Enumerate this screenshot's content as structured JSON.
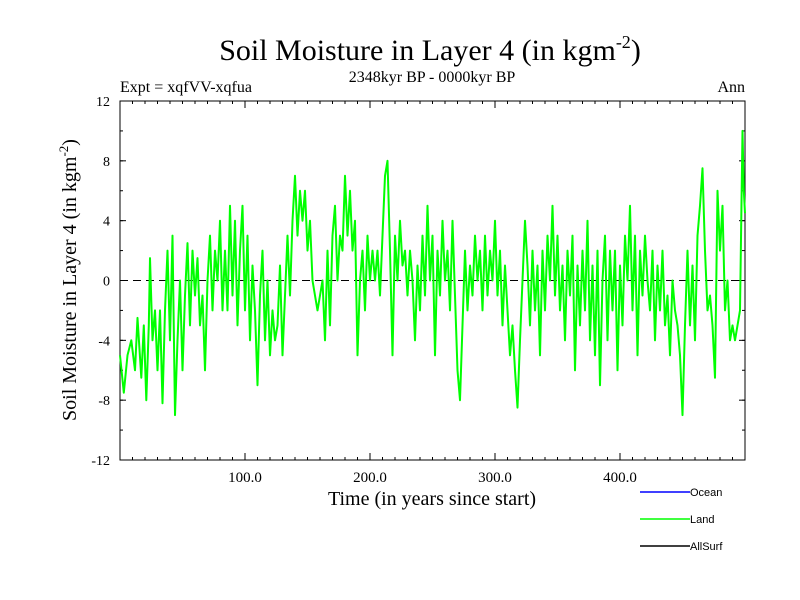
{
  "chart_data": {
    "type": "line",
    "title": "Soil Moisture in Layer 4 (in kgm",
    "title_sup": "-2",
    "title_end": ")",
    "subtitle_left": "Expt = xqfVV-xqfua",
    "subtitle_center": "2348kyr BP - 0000kyr BP",
    "subtitle_right": "Ann",
    "xlabel": "Time (in years since start)",
    "ylabel": "Soil Moisture in Layer 4 (in kgm",
    "ylabel_sup": "-2",
    "ylabel_end": ")",
    "xlim": [
      0,
      500
    ],
    "ylim": [
      -12,
      12
    ],
    "x_ticks": [
      100,
      200,
      300,
      400
    ],
    "x_tick_labels": [
      "100.0",
      "200.0",
      "300.0",
      "400.0"
    ],
    "y_ticks": [
      -12,
      -8,
      -4,
      0,
      4,
      8,
      12
    ],
    "y_tick_labels": [
      "-12",
      "-8",
      "-4",
      "0",
      "4",
      "8",
      "12"
    ],
    "zero_line": true,
    "series": [
      {
        "name": "Ocean",
        "color": "#0000ff",
        "points": []
      },
      {
        "name": "Land",
        "color": "#00ff00",
        "points": [
          [
            0,
            -5
          ],
          [
            3,
            -7.5
          ],
          [
            6,
            -5
          ],
          [
            9,
            -4
          ],
          [
            12,
            -6
          ],
          [
            14,
            -2.5
          ],
          [
            17,
            -6.5
          ],
          [
            19,
            -3
          ],
          [
            21,
            -8
          ],
          [
            23,
            -3
          ],
          [
            24,
            1.5
          ],
          [
            26,
            -4
          ],
          [
            28,
            -2
          ],
          [
            30,
            -6
          ],
          [
            32,
            -2
          ],
          [
            34,
            -8.2
          ],
          [
            36,
            -2
          ],
          [
            38,
            2
          ],
          [
            40,
            -4
          ],
          [
            42,
            3
          ],
          [
            44,
            -9
          ],
          [
            46,
            -4
          ],
          [
            48,
            0
          ],
          [
            50,
            -6
          ],
          [
            52,
            -1
          ],
          [
            54,
            2.5
          ],
          [
            56,
            -3
          ],
          [
            58,
            2
          ],
          [
            60,
            -1
          ],
          [
            62,
            1.5
          ],
          [
            64,
            -3
          ],
          [
            66,
            -1
          ],
          [
            68,
            -6
          ],
          [
            70,
            0
          ],
          [
            72,
            3
          ],
          [
            74,
            -2
          ],
          [
            76,
            2
          ],
          [
            78,
            0
          ],
          [
            80,
            4
          ],
          [
            82,
            -2
          ],
          [
            84,
            2
          ],
          [
            86,
            -2
          ],
          [
            88,
            5
          ],
          [
            90,
            -1
          ],
          [
            92,
            4
          ],
          [
            94,
            -3
          ],
          [
            96,
            2
          ],
          [
            98,
            5
          ],
          [
            100,
            -2
          ],
          [
            102,
            3
          ],
          [
            104,
            -4
          ],
          [
            106,
            1
          ],
          [
            108,
            -2
          ],
          [
            110,
            -7
          ],
          [
            112,
            -1
          ],
          [
            114,
            2
          ],
          [
            116,
            -4
          ],
          [
            118,
            0
          ],
          [
            120,
            -5
          ],
          [
            122,
            -2
          ],
          [
            124,
            -4
          ],
          [
            126,
            -3
          ],
          [
            128,
            1
          ],
          [
            130,
            -5
          ],
          [
            132,
            -1
          ],
          [
            134,
            3
          ],
          [
            136,
            -1
          ],
          [
            138,
            4
          ],
          [
            140,
            7
          ],
          [
            142,
            3
          ],
          [
            144,
            6
          ],
          [
            146,
            4
          ],
          [
            148,
            6
          ],
          [
            150,
            2
          ],
          [
            152,
            4
          ],
          [
            154,
            0
          ],
          [
            156,
            -1
          ],
          [
            158,
            -2
          ],
          [
            160,
            -1
          ],
          [
            162,
            0
          ],
          [
            164,
            -4
          ],
          [
            166,
            2
          ],
          [
            168,
            -3
          ],
          [
            170,
            3
          ],
          [
            172,
            5
          ],
          [
            174,
            0
          ],
          [
            176,
            3
          ],
          [
            178,
            2
          ],
          [
            180,
            7
          ],
          [
            182,
            3
          ],
          [
            184,
            6
          ],
          [
            186,
            2
          ],
          [
            188,
            4
          ],
          [
            190,
            -5
          ],
          [
            192,
            0
          ],
          [
            194,
            2
          ],
          [
            196,
            -2
          ],
          [
            198,
            3
          ],
          [
            200,
            0
          ],
          [
            202,
            2
          ],
          [
            204,
            0
          ],
          [
            206,
            2
          ],
          [
            208,
            -1
          ],
          [
            210,
            3
          ],
          [
            212,
            7
          ],
          [
            214,
            8
          ],
          [
            216,
            2
          ],
          [
            218,
            -5
          ],
          [
            220,
            3
          ],
          [
            222,
            0
          ],
          [
            224,
            4
          ],
          [
            226,
            1
          ],
          [
            228,
            2
          ],
          [
            230,
            -1
          ],
          [
            232,
            2
          ],
          [
            234,
            0
          ],
          [
            236,
            -4
          ],
          [
            238,
            1
          ],
          [
            240,
            -2
          ],
          [
            242,
            3
          ],
          [
            244,
            -1
          ],
          [
            246,
            5
          ],
          [
            248,
            0
          ],
          [
            250,
            3
          ],
          [
            252,
            -5
          ],
          [
            254,
            2
          ],
          [
            256,
            -1
          ],
          [
            258,
            4
          ],
          [
            260,
            0
          ],
          [
            262,
            2
          ],
          [
            264,
            -2
          ],
          [
            266,
            4
          ],
          [
            268,
            -1
          ],
          [
            270,
            -6
          ],
          [
            272,
            -8
          ],
          [
            274,
            -3
          ],
          [
            276,
            2
          ],
          [
            278,
            -2
          ],
          [
            280,
            1
          ],
          [
            282,
            -1
          ],
          [
            284,
            3
          ],
          [
            286,
            0
          ],
          [
            288,
            2
          ],
          [
            290,
            -2
          ],
          [
            292,
            3
          ],
          [
            294,
            -1
          ],
          [
            296,
            2
          ],
          [
            298,
            0
          ],
          [
            300,
            4
          ],
          [
            302,
            -1
          ],
          [
            304,
            2
          ],
          [
            306,
            -3
          ],
          [
            308,
            1
          ],
          [
            310,
            -2
          ],
          [
            312,
            -5
          ],
          [
            314,
            -3
          ],
          [
            316,
            -6
          ],
          [
            318,
            -8.5
          ],
          [
            320,
            -4
          ],
          [
            322,
            0
          ],
          [
            324,
            4
          ],
          [
            326,
            1
          ],
          [
            328,
            -3
          ],
          [
            330,
            2
          ],
          [
            332,
            -2
          ],
          [
            334,
            1
          ],
          [
            336,
            -5
          ],
          [
            338,
            2
          ],
          [
            340,
            -2
          ],
          [
            342,
            3
          ],
          [
            344,
            0
          ],
          [
            346,
            5
          ],
          [
            348,
            -1
          ],
          [
            350,
            3
          ],
          [
            352,
            -2
          ],
          [
            354,
            1
          ],
          [
            356,
            -4
          ],
          [
            358,
            2
          ],
          [
            360,
            -1
          ],
          [
            362,
            3
          ],
          [
            364,
            -6
          ],
          [
            366,
            1
          ],
          [
            368,
            -3
          ],
          [
            370,
            2
          ],
          [
            372,
            -2
          ],
          [
            374,
            4
          ],
          [
            376,
            -4
          ],
          [
            378,
            1
          ],
          [
            380,
            -5
          ],
          [
            382,
            2
          ],
          [
            384,
            -7
          ],
          [
            386,
            0
          ],
          [
            388,
            3
          ],
          [
            390,
            -4
          ],
          [
            392,
            2
          ],
          [
            394,
            -2
          ],
          [
            396,
            2
          ],
          [
            398,
            -6
          ],
          [
            400,
            1
          ],
          [
            402,
            -3
          ],
          [
            404,
            3
          ],
          [
            406,
            0
          ],
          [
            408,
            5
          ],
          [
            410,
            -2
          ],
          [
            412,
            3
          ],
          [
            414,
            -5
          ],
          [
            416,
            2
          ],
          [
            418,
            -1
          ],
          [
            420,
            3
          ],
          [
            422,
            0
          ],
          [
            424,
            -2
          ],
          [
            426,
            2
          ],
          [
            428,
            -4
          ],
          [
            430,
            1
          ],
          [
            432,
            -2
          ],
          [
            434,
            2
          ],
          [
            436,
            -3
          ],
          [
            438,
            -1
          ],
          [
            440,
            -5
          ],
          [
            442,
            0
          ],
          [
            444,
            -2
          ],
          [
            446,
            -3
          ],
          [
            448,
            -5
          ],
          [
            450,
            -9
          ],
          [
            452,
            -3
          ],
          [
            454,
            2
          ],
          [
            456,
            -3
          ],
          [
            458,
            1
          ],
          [
            460,
            -4
          ],
          [
            462,
            3
          ],
          [
            464,
            5
          ],
          [
            466,
            7.5
          ],
          [
            468,
            2
          ],
          [
            470,
            -2
          ],
          [
            472,
            -1
          ],
          [
            474,
            -3
          ],
          [
            476,
            -6.5
          ],
          [
            478,
            6
          ],
          [
            480,
            2
          ],
          [
            482,
            5
          ],
          [
            484,
            -2
          ],
          [
            486,
            0
          ],
          [
            488,
            -4
          ],
          [
            490,
            -3
          ],
          [
            492,
            -4
          ],
          [
            494,
            -3
          ],
          [
            496,
            -2
          ],
          [
            498,
            10
          ],
          [
            499,
            6
          ],
          [
            500,
            4.5
          ]
        ]
      },
      {
        "name": "AllSurf",
        "color": "#000000",
        "points": []
      }
    ],
    "legend_position": "bottom-right"
  }
}
